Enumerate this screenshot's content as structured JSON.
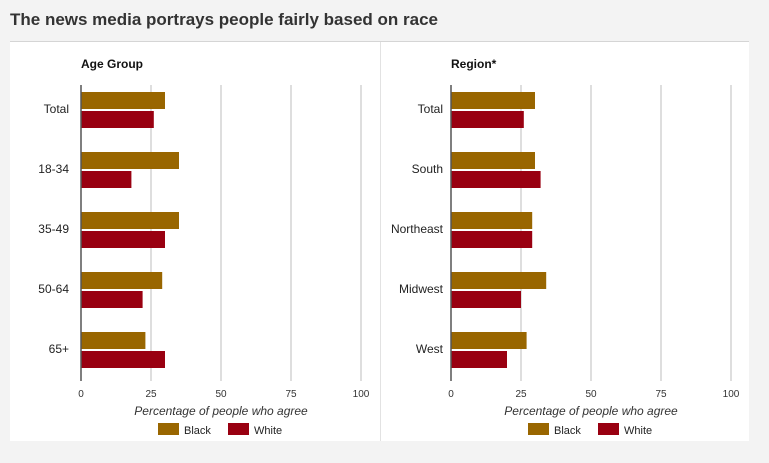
{
  "page": {
    "title": "The news media portrays people fairly based on race"
  },
  "colors": {
    "black": "#996600",
    "white": "#990011",
    "grid": "#d4d4d4",
    "axis": "#555555"
  },
  "chart_data": [
    {
      "type": "bar",
      "orientation": "horizontal",
      "title": "Age Group",
      "xlabel": "Percentage of people who agree",
      "ylabel": "",
      "xlim": [
        0,
        100
      ],
      "xticks": [
        "0",
        "25",
        "50",
        "75",
        "100"
      ],
      "categories": [
        "Total",
        "18-34",
        "35-49",
        "50-64",
        "65+"
      ],
      "series": [
        {
          "name": "Black",
          "color": "#996600",
          "values": [
            30,
            35,
            35,
            29,
            23
          ]
        },
        {
          "name": "White",
          "color": "#990011",
          "values": [
            26,
            18,
            30,
            22,
            30
          ]
        }
      ],
      "legend": "bottom",
      "grid": true
    },
    {
      "type": "bar",
      "orientation": "horizontal",
      "title": "Region*",
      "xlabel": "Percentage of people who agree",
      "ylabel": "",
      "xlim": [
        0,
        100
      ],
      "xticks": [
        "0",
        "25",
        "50",
        "75",
        "100"
      ],
      "categories": [
        "Total",
        "South",
        "Northeast",
        "Midwest",
        "West"
      ],
      "series": [
        {
          "name": "Black",
          "color": "#996600",
          "values": [
            30,
            30,
            29,
            34,
            27
          ]
        },
        {
          "name": "White",
          "color": "#990011",
          "values": [
            26,
            32,
            29,
            25,
            20
          ]
        }
      ],
      "legend": "bottom",
      "grid": true
    }
  ]
}
